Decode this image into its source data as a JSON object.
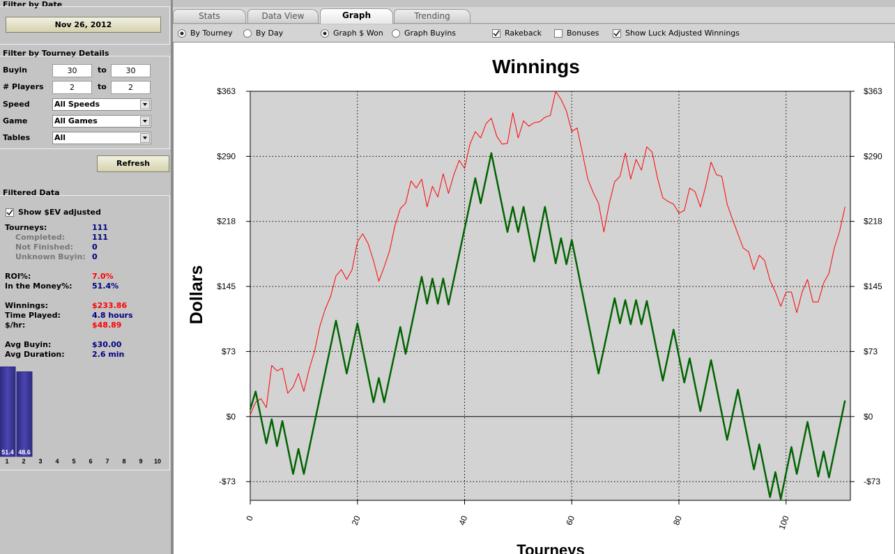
{
  "sidebar": {
    "date_filter": {
      "title": "Filter by Date",
      "button": "Nov 26, 2012"
    },
    "tourney_filter": {
      "title": "Filter by Tourney Details",
      "fields": [
        {
          "label": "Buyin",
          "from": "30",
          "to_label": "to",
          "to": "30"
        },
        {
          "label": "# Players",
          "from": "2",
          "to_label": "to",
          "to": "2"
        }
      ],
      "selects": [
        {
          "label": "Speed",
          "value": "All Speeds"
        },
        {
          "label": "Game",
          "value": "All Games"
        },
        {
          "label": "Tables",
          "value": "All"
        }
      ],
      "refresh": "Refresh"
    },
    "filtered": {
      "title": "Filtered Data",
      "checkbox": {
        "label": "Show $EV adjusted",
        "checked": true
      },
      "stats": [
        [
          {
            "label": "Tourneys:",
            "value": "111",
            "color": "#000080",
            "details": [
              {
                "label": "Completed:",
                "value": "111"
              },
              {
                "label": "Not Finished:",
                "value": "0"
              },
              {
                "label": "Unknown Buyin:",
                "value": "0"
              }
            ]
          }
        ],
        [
          {
            "label": "ROI%:",
            "value": "7.0%",
            "color": "#ff0000"
          },
          {
            "label": "In the Money%:",
            "value": "51.4%",
            "color": "#000080"
          }
        ],
        [
          {
            "label": "Winnings:",
            "value": "$233.86",
            "color": "#ff0000"
          },
          {
            "label": "Time Played:",
            "value": "4.8 hours",
            "color": "#000080"
          },
          {
            "label": "$/hr:",
            "value": "$48.89",
            "color": "#ff0000"
          }
        ],
        [
          {
            "label": "Avg Buyin:",
            "value": "$30.00",
            "color": "#000080"
          },
          {
            "label": "Avg Duration:",
            "value": "2.6 min",
            "color": "#000080"
          }
        ]
      ]
    }
  },
  "tabs": [
    "Stats",
    "Data View",
    "Graph",
    "Trending"
  ],
  "active_tab": 2,
  "options": [
    {
      "kind": "radio",
      "label": "By Tourney",
      "checked": true
    },
    {
      "kind": "radio",
      "label": "By Day",
      "checked": false
    },
    {
      "kind": "radio",
      "label": "Graph $ Won",
      "checked": true
    },
    {
      "kind": "radio",
      "label": "Graph Buyins",
      "checked": false
    },
    {
      "kind": "checkbox",
      "label": "Rakeback",
      "checked": true
    },
    {
      "kind": "checkbox",
      "label": "Bonuses",
      "checked": false
    },
    {
      "kind": "checkbox",
      "label": "Show Luck Adjusted Winnings",
      "checked": true
    }
  ],
  "chart_data": [
    {
      "type": "line",
      "title": "Winnings",
      "x_label": "Tourneys",
      "y_label": "Dollars",
      "xlim": [
        0,
        112
      ],
      "xticks": [
        0,
        20,
        40,
        60,
        80,
        100
      ],
      "ylim": [
        -93.5,
        363
      ],
      "yticks": [
        {
          "value": -72.6,
          "label": "-$73"
        },
        {
          "value": 0,
          "label": "$0"
        },
        {
          "value": 72.6,
          "label": "$73"
        },
        {
          "value": 145.2,
          "label": "$145"
        },
        {
          "value": 217.8,
          "label": "$218"
        },
        {
          "value": 290.4,
          "label": "$290"
        },
        {
          "value": 363,
          "label": "$363"
        }
      ],
      "grid": true,
      "background": "#d3d3d3",
      "series": [
        {
          "color": "#ff0000",
          "line_width": 1,
          "x": [
            0,
            1,
            2,
            3,
            4,
            5,
            6,
            7,
            8,
            9,
            10,
            11,
            12,
            13,
            14,
            15,
            16,
            17,
            18,
            19,
            20,
            21,
            22,
            23,
            24,
            25,
            26,
            27,
            28,
            29,
            30,
            31,
            32,
            33,
            34,
            35,
            36,
            37,
            38,
            39,
            40,
            41,
            42,
            43,
            44,
            45,
            46,
            47,
            48,
            49,
            50,
            51,
            52,
            53,
            54,
            55,
            56,
            57,
            58,
            59,
            60,
            61,
            62,
            63,
            64,
            65,
            66,
            67,
            68,
            69,
            70,
            71,
            72,
            73,
            74,
            75,
            76,
            77,
            78,
            79,
            80,
            81,
            82,
            83,
            84,
            85,
            86,
            87,
            88,
            89,
            90,
            91,
            92,
            93,
            94,
            95,
            96,
            97,
            98,
            99,
            100,
            101,
            102,
            103,
            104,
            105,
            106,
            107,
            108,
            109,
            110,
            111
          ],
          "values": [
            2,
            16,
            20,
            10,
            57,
            51,
            54,
            26,
            33,
            48,
            28,
            53,
            73,
            101,
            120,
            134,
            157,
            164,
            153,
            164,
            195,
            204,
            193,
            174,
            151,
            167,
            185,
            213,
            232,
            238,
            263,
            255,
            265,
            234,
            257,
            245,
            271,
            249,
            270,
            286,
            277,
            304,
            318,
            311,
            327,
            333,
            313,
            304,
            305,
            339,
            311,
            330,
            324,
            328,
            329,
            334,
            336,
            363,
            354,
            341,
            318,
            322,
            294,
            265,
            250,
            238,
            206,
            238,
            262,
            268,
            294,
            265,
            287,
            275,
            301,
            295,
            266,
            244,
            240,
            237,
            227,
            230,
            255,
            251,
            234,
            257,
            284,
            270,
            268,
            237,
            220,
            204,
            188,
            184,
            164,
            180,
            174,
            152,
            139,
            123,
            139,
            139,
            116,
            139,
            153,
            128,
            128,
            149,
            160,
            188,
            207,
            234
          ]
        },
        {
          "color": "#006400",
          "line_width": 2.5,
          "x": [
            0,
            1,
            3,
            4,
            5,
            6,
            8,
            9,
            10,
            16,
            18,
            20,
            23,
            24,
            25,
            28,
            29,
            32,
            33,
            34,
            35,
            36,
            37,
            42,
            43,
            45,
            48,
            49,
            50,
            51,
            53,
            55,
            57,
            58,
            59,
            60,
            65,
            68,
            69,
            70,
            71,
            72,
            73,
            74,
            77,
            79,
            81,
            82,
            84,
            86,
            89,
            91,
            94,
            95,
            97,
            98,
            99,
            101,
            102,
            104,
            106,
            107,
            108,
            111
          ],
          "values": [
            8,
            28,
            -30,
            -3,
            -33,
            -5,
            -64,
            -36,
            -64,
            107,
            48,
            104,
            16,
            43,
            16,
            100,
            70,
            156,
            126,
            154,
            126,
            154,
            125,
            266,
            238,
            294,
            206,
            234,
            206,
            234,
            173,
            234,
            171,
            199,
            170,
            197,
            48,
            132,
            104,
            130,
            103,
            130,
            103,
            129,
            40,
            97,
            38,
            65,
            6,
            63,
            -26,
            30,
            -59,
            -31,
            -90,
            -62,
            -92,
            -34,
            -64,
            -6,
            -67,
            -39,
            -68,
            18
          ]
        }
      ]
    },
    {
      "type": "bar",
      "categories": [
        "1",
        "2",
        "3",
        "4",
        "5",
        "6",
        "7",
        "8",
        "9",
        "10"
      ],
      "values": [
        51.4,
        48.6,
        null,
        null,
        null,
        null,
        null,
        null,
        null,
        null
      ],
      "color": "#2e2a80",
      "ylim": [
        0,
        52
      ]
    }
  ]
}
